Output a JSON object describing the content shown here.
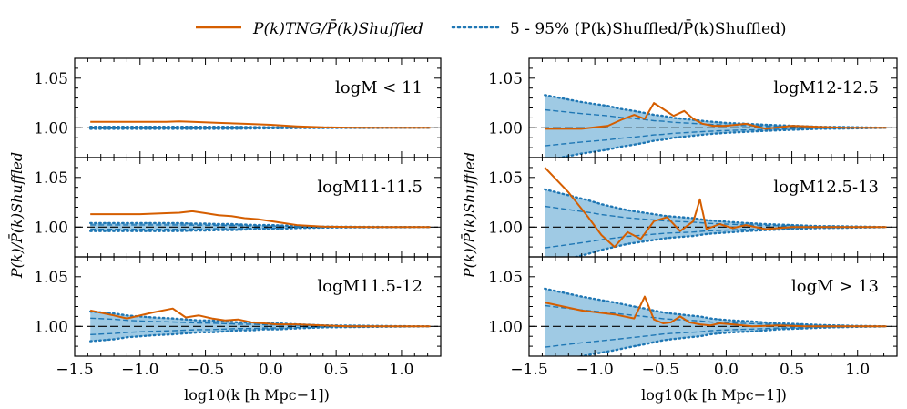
{
  "legend": {
    "placement": "top-center",
    "line_label": "P(k)TNG/P̄(k)Shuffled",
    "band_label": "5 - 95% (P(k)Shuffled/P̄(k)Shuffled)"
  },
  "axes": {
    "xlabel": "log10(k [h Mpc−1])",
    "ylabel": "P(k)/P̄(k)Shuffled"
  },
  "colors": {
    "line": "#d55e00",
    "band": "#1f77b4",
    "band_fill": "#6baed6"
  },
  "chart_data": [
    {
      "type": "line",
      "title": "logM < 11",
      "xlim": [
        -1.5,
        1.3
      ],
      "ylim": [
        0.97,
        1.07
      ],
      "xticks": [
        -1.5,
        -1.0,
        -0.5,
        0.0,
        0.5,
        1.0
      ],
      "yticks": [
        1.0,
        1.05
      ],
      "grid": false,
      "x": [
        -1.38,
        -1.2,
        -1.0,
        -0.8,
        -0.7,
        -0.6,
        -0.4,
        -0.2,
        0.0,
        0.2,
        0.4,
        0.6,
        0.8,
        1.0,
        1.22
      ],
      "tng": [
        1.006,
        1.006,
        1.006,
        1.006,
        1.0065,
        1.006,
        1.005,
        1.004,
        1.003,
        1.0015,
        1.0005,
        1.0002,
        1.0001,
        1.0,
        1.0
      ],
      "band_lo": [
        0.999,
        0.999,
        0.999,
        0.999,
        0.999,
        0.999,
        0.999,
        0.9992,
        0.9995,
        0.9997,
        0.9998,
        0.9999,
        0.9999,
        1.0,
        1.0
      ],
      "band_hi": [
        1.001,
        1.001,
        1.001,
        1.001,
        1.001,
        1.001,
        1.001,
        1.0008,
        1.0005,
        1.0003,
        1.0002,
        1.0001,
        1.0001,
        1.0,
        1.0
      ]
    },
    {
      "type": "line",
      "title": "logM11-11.5",
      "xlim": [
        -1.5,
        1.3
      ],
      "ylim": [
        0.97,
        1.07
      ],
      "xticks": [
        -1.5,
        -1.0,
        -0.5,
        0.0,
        0.5,
        1.0
      ],
      "yticks": [
        1.0,
        1.05
      ],
      "grid": false,
      "x": [
        -1.38,
        -1.2,
        -1.0,
        -0.8,
        -0.7,
        -0.6,
        -0.5,
        -0.4,
        -0.3,
        -0.2,
        -0.1,
        0.0,
        0.2,
        0.4,
        0.6,
        0.8,
        1.0,
        1.22
      ],
      "tng": [
        1.013,
        1.013,
        1.013,
        1.014,
        1.0145,
        1.016,
        1.014,
        1.012,
        1.011,
        1.009,
        1.008,
        1.006,
        1.002,
        1.0005,
        1.0002,
        1.0001,
        1.0,
        1.0
      ],
      "band_lo": [
        0.996,
        0.996,
        0.996,
        0.996,
        0.996,
        0.9965,
        0.9965,
        0.997,
        0.997,
        0.9975,
        0.998,
        0.998,
        0.999,
        0.9995,
        0.9997,
        0.9998,
        0.9999,
        1.0
      ],
      "band_hi": [
        1.004,
        1.004,
        1.004,
        1.004,
        1.004,
        1.0035,
        1.0035,
        1.003,
        1.003,
        1.0025,
        1.002,
        1.002,
        1.001,
        1.0005,
        1.0003,
        1.0002,
        1.0001,
        1.0
      ]
    },
    {
      "type": "line",
      "title": "logM11.5-12",
      "xlim": [
        -1.5,
        1.3
      ],
      "ylim": [
        0.97,
        1.07
      ],
      "xticks": [
        -1.5,
        -1.0,
        -0.5,
        0.0,
        0.5,
        1.0
      ],
      "yticks": [
        1.0,
        1.05
      ],
      "grid": false,
      "x": [
        -1.38,
        -1.2,
        -1.1,
        -0.9,
        -0.75,
        -0.65,
        -0.55,
        -0.45,
        -0.35,
        -0.25,
        -0.15,
        -0.05,
        0.05,
        0.2,
        0.4,
        0.6,
        0.8,
        1.0,
        1.22
      ],
      "tng": [
        1.016,
        1.011,
        1.008,
        1.014,
        1.018,
        1.009,
        1.011,
        1.008,
        1.006,
        1.007,
        1.004,
        1.003,
        1.002,
        1.002,
        1.001,
        1.0,
        1.0,
        1.0,
        1.0
      ],
      "band_lo": [
        0.985,
        0.987,
        0.989,
        0.991,
        0.992,
        0.993,
        0.994,
        0.994,
        0.995,
        0.996,
        0.996,
        0.997,
        0.997,
        0.998,
        0.999,
        0.9993,
        0.9995,
        0.9998,
        1.0
      ],
      "band_hi": [
        1.015,
        1.013,
        1.011,
        1.009,
        1.008,
        1.007,
        1.006,
        1.006,
        1.005,
        1.004,
        1.004,
        1.003,
        1.003,
        1.002,
        1.001,
        1.0007,
        1.0005,
        1.0002,
        1.0
      ]
    },
    {
      "type": "line",
      "title": "logM12-12.5",
      "xlim": [
        -1.5,
        1.3
      ],
      "ylim": [
        0.97,
        1.07
      ],
      "xticks": [
        -1.5,
        -1.0,
        -0.5,
        0.0,
        0.5,
        1.0
      ],
      "yticks": [
        1.0,
        1.05
      ],
      "grid": false,
      "x": [
        -1.38,
        -1.1,
        -0.9,
        -0.8,
        -0.7,
        -0.62,
        -0.55,
        -0.48,
        -0.4,
        -0.32,
        -0.25,
        -0.18,
        -0.1,
        0.0,
        0.15,
        0.3,
        0.5,
        0.7,
        0.9,
        1.1,
        1.22
      ],
      "tng": [
        0.999,
        0.999,
        1.002,
        1.008,
        1.013,
        1.009,
        1.025,
        1.019,
        1.012,
        1.017,
        1.009,
        1.004,
        1.002,
        1.002,
        1.004,
        0.999,
        1.002,
        1.001,
        1.0,
        1.0,
        1.0
      ],
      "band_lo": [
        0.967,
        0.974,
        0.978,
        0.981,
        0.983,
        0.985,
        0.987,
        0.988,
        0.99,
        0.991,
        0.992,
        0.993,
        0.994,
        0.995,
        0.996,
        0.997,
        0.998,
        0.999,
        0.9993,
        0.9997,
        1.0
      ],
      "band_hi": [
        1.033,
        1.026,
        1.022,
        1.019,
        1.017,
        1.015,
        1.013,
        1.012,
        1.01,
        1.009,
        1.008,
        1.007,
        1.006,
        1.005,
        1.004,
        1.003,
        1.002,
        1.001,
        1.0007,
        1.0003,
        1.0
      ]
    },
    {
      "type": "line",
      "title": "logM12.5-13",
      "xlim": [
        -1.5,
        1.3
      ],
      "ylim": [
        0.97,
        1.07
      ],
      "xticks": [
        -1.5,
        -1.0,
        -0.5,
        0.0,
        0.5,
        1.0
      ],
      "yticks": [
        1.0,
        1.05
      ],
      "grid": false,
      "x": [
        -1.38,
        -1.2,
        -1.05,
        -0.95,
        -0.85,
        -0.75,
        -0.65,
        -0.55,
        -0.45,
        -0.35,
        -0.25,
        -0.2,
        -0.15,
        -0.05,
        0.05,
        0.15,
        0.3,
        0.5,
        0.7,
        0.9,
        1.1,
        1.22
      ],
      "tng": [
        1.06,
        1.035,
        1.01,
        0.992,
        0.98,
        0.995,
        0.988,
        1.006,
        1.01,
        0.996,
        1.006,
        1.028,
        0.998,
        1.003,
        0.999,
        1.002,
        0.998,
        1.0,
        1.0,
        1.0,
        1.0,
        1.0
      ],
      "band_lo": [
        0.962,
        0.968,
        0.973,
        0.977,
        0.98,
        0.983,
        0.985,
        0.987,
        0.989,
        0.99,
        0.991,
        0.992,
        0.993,
        0.994,
        0.995,
        0.996,
        0.997,
        0.998,
        0.999,
        0.9993,
        0.9997,
        1.0
      ],
      "band_hi": [
        1.038,
        1.032,
        1.027,
        1.023,
        1.02,
        1.017,
        1.015,
        1.013,
        1.011,
        1.01,
        1.009,
        1.008,
        1.007,
        1.006,
        1.005,
        1.004,
        1.003,
        1.002,
        1.001,
        1.0007,
        1.0003,
        1.0
      ]
    },
    {
      "type": "line",
      "title": "logM > 13",
      "xlim": [
        -1.5,
        1.3
      ],
      "ylim": [
        0.97,
        1.07
      ],
      "xticks": [
        -1.5,
        -1.0,
        -0.5,
        0.0,
        0.5,
        1.0
      ],
      "yticks": [
        1.0,
        1.05
      ],
      "grid": false,
      "x": [
        -1.38,
        -1.1,
        -0.85,
        -0.7,
        -0.62,
        -0.55,
        -0.48,
        -0.42,
        -0.35,
        -0.28,
        -0.2,
        -0.12,
        -0.05,
        0.05,
        0.2,
        0.4,
        0.6,
        0.8,
        1.0,
        1.22
      ],
      "tng": [
        1.024,
        1.016,
        1.012,
        1.008,
        1.03,
        1.007,
        1.003,
        1.004,
        1.01,
        1.004,
        1.002,
        1.001,
        1.003,
        1.002,
        1.0,
        1.001,
        1.0,
        1.0,
        1.0,
        1.0
      ],
      "band_lo": [
        0.962,
        0.97,
        0.976,
        0.98,
        0.982,
        0.984,
        0.986,
        0.987,
        0.988,
        0.989,
        0.99,
        0.992,
        0.993,
        0.994,
        0.995,
        0.997,
        0.998,
        0.999,
        0.9995,
        1.0
      ],
      "band_hi": [
        1.038,
        1.03,
        1.024,
        1.02,
        1.018,
        1.016,
        1.014,
        1.013,
        1.012,
        1.011,
        1.01,
        1.008,
        1.007,
        1.006,
        1.005,
        1.003,
        1.002,
        1.001,
        1.0005,
        1.0
      ]
    }
  ]
}
